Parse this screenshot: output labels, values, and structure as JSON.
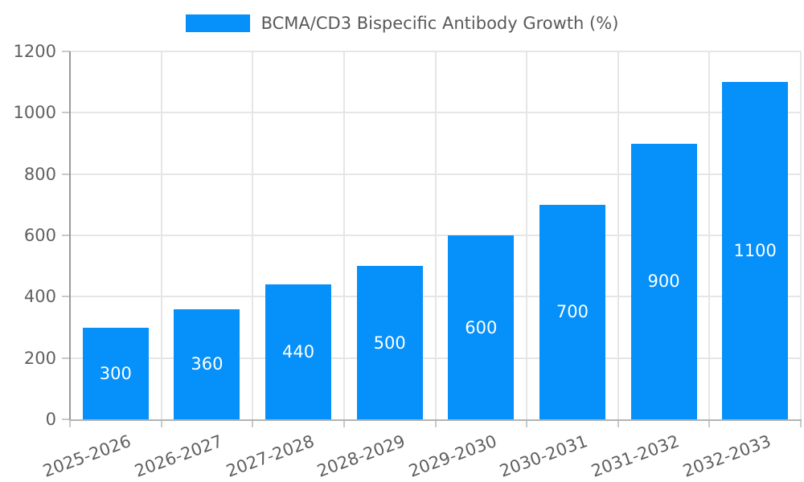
{
  "chart_data": {
    "type": "bar",
    "title": "",
    "legend": {
      "label": "BCMA/CD3 Bispecific Antibody Growth (%)",
      "position": "top-center"
    },
    "categories": [
      "2025-2026",
      "2026-2027",
      "2027-2028",
      "2028-2029",
      "2029-2030",
      "2030-2031",
      "2031-2032",
      "2032-2033"
    ],
    "values": [
      300,
      360,
      440,
      500,
      600,
      700,
      900,
      1100
    ],
    "bar_value_labels": [
      "300",
      "360",
      "440",
      "500",
      "600",
      "700",
      "900",
      "1100"
    ],
    "xlabel": "",
    "ylabel": "",
    "ylim": [
      0,
      1200
    ],
    "yticks": [
      0,
      200,
      400,
      600,
      800,
      1000,
      1200
    ],
    "grid": true,
    "x_label_rotation_deg": -20,
    "colors": {
      "bar": "#0690fa",
      "bar_label_text": "#ffffff",
      "grid": "#e6e6e6",
      "axis_y": "#9a9a9a",
      "axis_x": "#b3b3b3",
      "tick": "#c9c9c9",
      "tick_label_text": "#606060",
      "legend_text": "#595959",
      "background": "#ffffff"
    }
  }
}
